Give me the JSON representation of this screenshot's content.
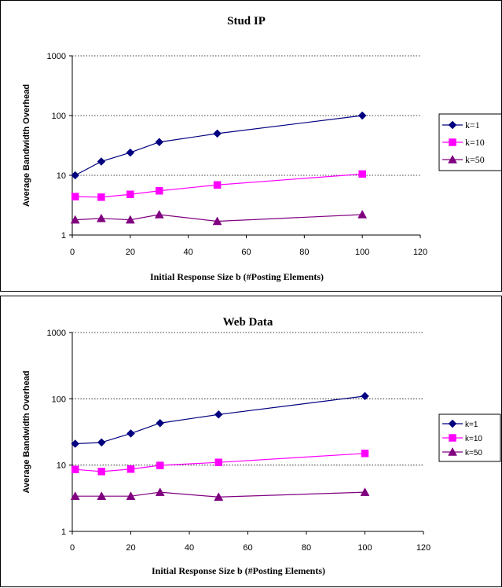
{
  "chart_data": [
    {
      "type": "line",
      "title": "Stud IP",
      "xlabel": "Initial Response Size b (#Posting Elements)",
      "ylabel": "Average Bandwidth Overhead",
      "xlim": [
        0,
        120
      ],
      "ylim": [
        1,
        1000
      ],
      "yscale": "log",
      "xticks": [
        "0",
        "20",
        "40",
        "60",
        "80",
        "100",
        "120"
      ],
      "yticks": [
        "1",
        "10",
        "100",
        "1000"
      ],
      "grid": "horizontal dotted",
      "legend_position": "right",
      "series": [
        {
          "name": "k=1",
          "color": "#000080",
          "marker": "diamond",
          "points": [
            [
              1,
              10
            ],
            [
              10,
              17
            ],
            [
              20,
              24
            ],
            [
              30,
              36
            ],
            [
              50,
              50
            ],
            [
              100,
              100
            ]
          ]
        },
        {
          "name": "k=10",
          "color": "#ff00ff",
          "marker": "square",
          "points": [
            [
              1,
              4.4
            ],
            [
              10,
              4.3
            ],
            [
              20,
              4.8
            ],
            [
              30,
              5.5
            ],
            [
              50,
              6.9
            ],
            [
              100,
              10.5
            ]
          ]
        },
        {
          "name": "k=50",
          "color": "#800080",
          "marker": "triangle",
          "points": [
            [
              1,
              1.8
            ],
            [
              10,
              1.9
            ],
            [
              20,
              1.8
            ],
            [
              30,
              2.2
            ],
            [
              50,
              1.7
            ],
            [
              100,
              2.2
            ]
          ]
        }
      ]
    },
    {
      "type": "line",
      "title": "Web Data",
      "xlabel": "Initial Response Size b (#Posting Elements)",
      "ylabel": "Average Bandwidth Overhead",
      "xlim": [
        0,
        120
      ],
      "ylim": [
        1,
        1000
      ],
      "yscale": "log",
      "xticks": [
        "0",
        "20",
        "40",
        "60",
        "80",
        "100",
        "120"
      ],
      "yticks": [
        "1",
        "10",
        "100",
        "1000"
      ],
      "grid": "horizontal dotted",
      "legend_position": "right",
      "series": [
        {
          "name": "k=1",
          "color": "#000080",
          "marker": "diamond",
          "points": [
            [
              1,
              21
            ],
            [
              10,
              22
            ],
            [
              20,
              30
            ],
            [
              30,
              43
            ],
            [
              50,
              58
            ],
            [
              100,
              110
            ]
          ]
        },
        {
          "name": "k=10",
          "color": "#ff00ff",
          "marker": "square",
          "points": [
            [
              1,
              8.6
            ],
            [
              10,
              8.0
            ],
            [
              20,
              8.7
            ],
            [
              30,
              9.9
            ],
            [
              50,
              11.0
            ],
            [
              100,
              15.0
            ]
          ]
        },
        {
          "name": "k=50",
          "color": "#800080",
          "marker": "triangle",
          "points": [
            [
              1,
              3.4
            ],
            [
              10,
              3.4
            ],
            [
              20,
              3.4
            ],
            [
              30,
              3.9
            ],
            [
              50,
              3.3
            ],
            [
              100,
              3.9
            ]
          ]
        }
      ]
    }
  ]
}
